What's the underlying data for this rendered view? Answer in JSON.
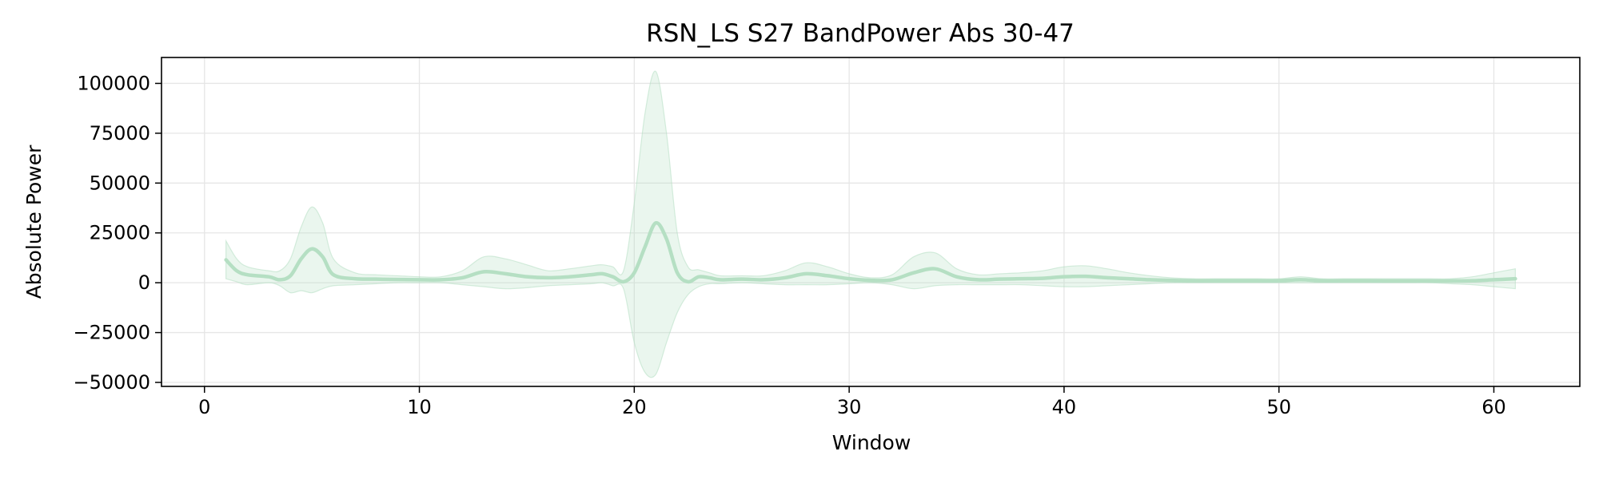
{
  "chart_data": {
    "type": "line",
    "title": "RSN_LS S27 BandPower Abs 30-47",
    "xlabel": "Window",
    "ylabel": "Absolute Power",
    "xlim": [
      -2,
      64
    ],
    "ylim": [
      -52000,
      113000
    ],
    "xticks": [
      0,
      10,
      20,
      30,
      40,
      50,
      60
    ],
    "xtick_labels": [
      "0",
      "10",
      "20",
      "30",
      "40",
      "50",
      "60"
    ],
    "yticks": [
      -50000,
      -25000,
      0,
      25000,
      50000,
      75000,
      100000
    ],
    "ytick_labels": [
      "−50000",
      "−25000",
      "0",
      "25000",
      "50000",
      "75000",
      "100000"
    ],
    "grid": true,
    "line_color": "#b5dfc3",
    "band_color": "#b5dfc3",
    "series": [
      {
        "x": [
          1,
          1.5,
          2,
          3,
          3.5,
          4,
          4.5,
          5,
          5.5,
          6,
          7,
          8,
          9,
          10,
          11,
          12,
          13,
          14,
          15,
          16,
          17,
          18,
          18.5,
          19,
          19.5,
          20,
          20.5,
          21,
          21.5,
          22,
          22.5,
          23,
          23.5,
          24,
          25,
          26,
          27,
          28,
          29,
          30,
          31,
          32,
          33,
          34,
          35,
          36,
          37,
          38,
          39,
          40,
          41,
          42,
          43,
          44,
          45,
          46,
          47,
          48,
          49,
          50,
          51,
          52,
          53,
          54,
          55,
          56,
          57,
          58,
          59,
          60,
          61
        ],
        "mean": [
          11500,
          6000,
          4000,
          3000,
          1500,
          3500,
          12000,
          17000,
          13000,
          4000,
          2000,
          1800,
          1600,
          1500,
          1500,
          2500,
          5500,
          4500,
          3000,
          2500,
          3000,
          4000,
          4500,
          3000,
          500,
          5000,
          18000,
          30000,
          22000,
          5000,
          500,
          3000,
          2500,
          1500,
          1800,
          1500,
          2500,
          4500,
          3500,
          2000,
          1200,
          1500,
          5000,
          7000,
          3000,
          1500,
          1800,
          2000,
          2200,
          3000,
          3200,
          2500,
          2000,
          1500,
          1200,
          1000,
          1000,
          1000,
          1000,
          1000,
          1500,
          1000,
          1000,
          1000,
          900,
          900,
          900,
          900,
          1000,
          1500,
          2000
        ],
        "upper": [
          21000,
          12000,
          8000,
          6000,
          6000,
          12000,
          28000,
          38000,
          30000,
          12000,
          5000,
          4000,
          3500,
          3000,
          3000,
          6000,
          13000,
          12000,
          9000,
          6000,
          7000,
          8500,
          9000,
          8000,
          6000,
          40000,
          85000,
          106000,
          75000,
          25000,
          8000,
          6500,
          5000,
          3500,
          3500,
          3500,
          6000,
          10000,
          8000,
          4500,
          2500,
          4000,
          13000,
          15000,
          7000,
          4000,
          4500,
          5000,
          6000,
          8000,
          8500,
          7000,
          5000,
          3500,
          2500,
          2000,
          2000,
          2000,
          2000,
          2000,
          3000,
          2000,
          2000,
          2000,
          2000,
          2000,
          2000,
          2000,
          3000,
          5000,
          7000
        ],
        "lower": [
          2000,
          500,
          -1000,
          0,
          -1500,
          -5000,
          -4000,
          -5000,
          -3000,
          -1500,
          -1000,
          -500,
          0,
          0,
          0,
          -1000,
          -2000,
          -3000,
          -2500,
          -1500,
          -1000,
          -500,
          0,
          -1500,
          -3000,
          -30000,
          -45000,
          -46000,
          -30000,
          -15000,
          -6000,
          -2000,
          -500,
          -500,
          0,
          -500,
          -1000,
          -1000,
          -1000,
          -500,
          0,
          -1000,
          -3000,
          -1500,
          -1000,
          -1000,
          -1000,
          -1000,
          -1500,
          -2000,
          -2000,
          -1500,
          -1000,
          -500,
          0,
          0,
          0,
          0,
          0,
          0,
          0,
          0,
          0,
          0,
          0,
          0,
          0,
          -500,
          -1000,
          -2000,
          -3000
        ]
      }
    ]
  }
}
